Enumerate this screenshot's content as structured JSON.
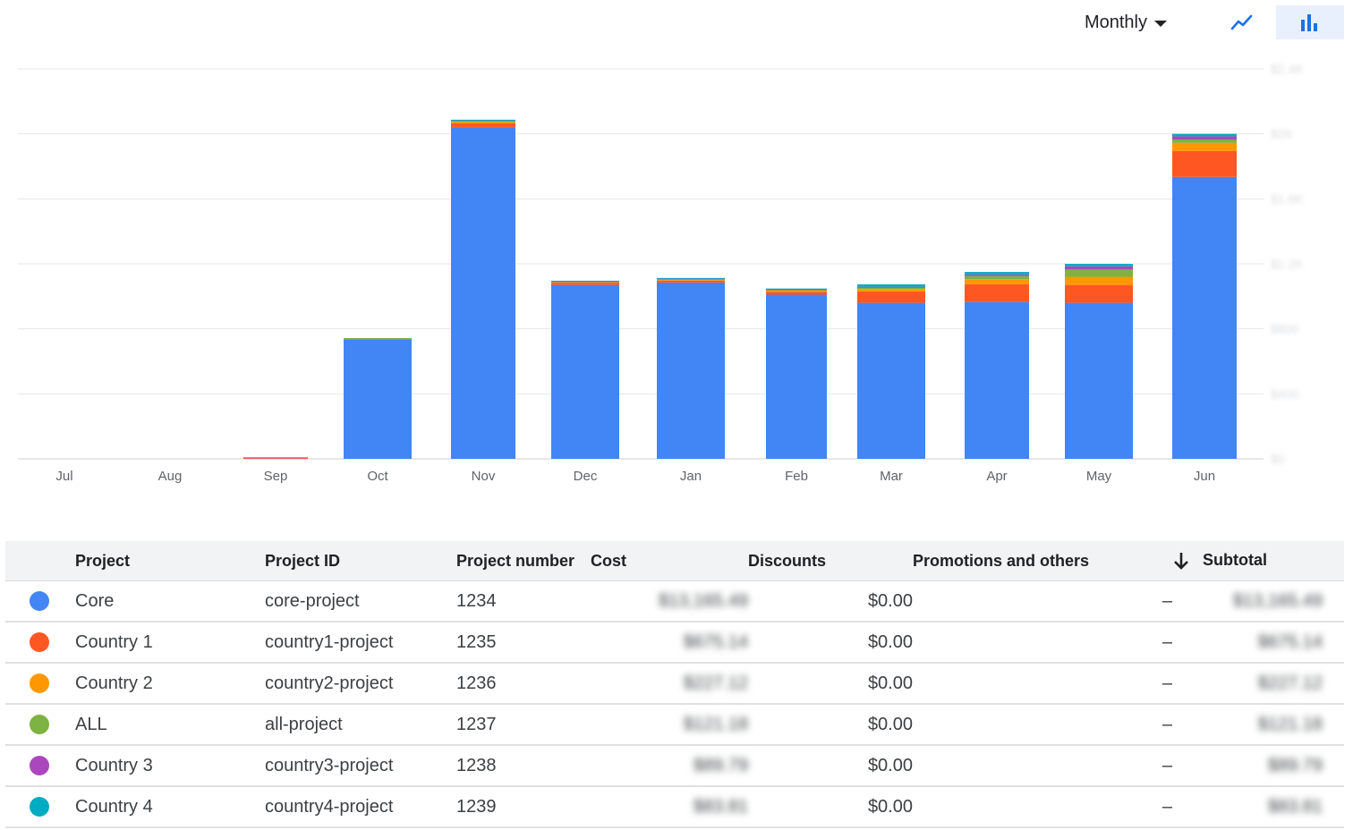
{
  "toolbar": {
    "period_label": "Monthly",
    "line_icon": "line-chart-icon",
    "bar_icon": "bar-chart-icon",
    "accent": "#1a73e8",
    "active_bg": "#e8f0fe"
  },
  "chart_data": {
    "type": "bar",
    "stacked": true,
    "categories": [
      "Jul",
      "Aug",
      "Sep",
      "Oct",
      "Nov",
      "Dec",
      "Jan",
      "Feb",
      "Mar",
      "Apr",
      "May",
      "Jun"
    ],
    "ylim": [
      0,
      2400
    ],
    "y_ticks": [
      "$0",
      "$400",
      "$800",
      "$1.2K",
      "$1.6K",
      "$2K",
      "$2.4K"
    ],
    "grid": true,
    "legend": "none",
    "series": [
      {
        "name": "Core",
        "color": "#4285f4",
        "values": [
          0,
          0,
          0,
          735,
          2040,
          1070,
          1085,
          1010,
          960,
          965,
          960,
          1735
        ]
      },
      {
        "name": "Country 1",
        "color": "#ff5722",
        "values": [
          0,
          0,
          5,
          3,
          25,
          12,
          12,
          18,
          70,
          110,
          110,
          160
        ]
      },
      {
        "name": "Country 2",
        "color": "#ff9800",
        "values": [
          0,
          0,
          0,
          3,
          10,
          6,
          6,
          10,
          15,
          30,
          50,
          50
        ]
      },
      {
        "name": "ALL",
        "color": "#7cb342",
        "values": [
          0,
          0,
          0,
          2,
          4,
          3,
          3,
          4,
          10,
          20,
          45,
          20
        ]
      },
      {
        "name": "Country 3",
        "color": "#ab47bc",
        "values": [
          0,
          0,
          4,
          0,
          6,
          3,
          5,
          3,
          4,
          10,
          20,
          20
        ]
      },
      {
        "name": "Country 4",
        "color": "#00acc1",
        "values": [
          0,
          0,
          0,
          0,
          2,
          2,
          2,
          3,
          15,
          15,
          15,
          15
        ]
      }
    ]
  },
  "table": {
    "headers": {
      "project": "Project",
      "project_id": "Project ID",
      "project_number": "Project number",
      "cost": "Cost",
      "discounts": "Discounts",
      "promotions": "Promotions and others",
      "subtotal": "Subtotal"
    },
    "sort_icon": "arrow-down-icon",
    "rows": [
      {
        "name": "Core",
        "id": "core-project",
        "number": "1234",
        "cost": "$13,165.49",
        "discounts": "$0.00",
        "promotions": "–",
        "subtotal": "$13,165.49",
        "color": "#4285f4"
      },
      {
        "name": "Country 1",
        "id": "country1-project",
        "number": "1235",
        "cost": "$675.14",
        "discounts": "$0.00",
        "promotions": "–",
        "subtotal": "$675.14",
        "color": "#ff5722"
      },
      {
        "name": "Country 2",
        "id": "country2-project",
        "number": "1236",
        "cost": "$227.12",
        "discounts": "$0.00",
        "promotions": "–",
        "subtotal": "$227.12",
        "color": "#ff9800"
      },
      {
        "name": "ALL",
        "id": "all-project",
        "number": "1237",
        "cost": "$121.18",
        "discounts": "$0.00",
        "promotions": "–",
        "subtotal": "$121.18",
        "color": "#7cb342"
      },
      {
        "name": "Country 3",
        "id": "country3-project",
        "number": "1238",
        "cost": "$89.79",
        "discounts": "$0.00",
        "promotions": "–",
        "subtotal": "$89.79",
        "color": "#ab47bc"
      },
      {
        "name": "Country 4",
        "id": "country4-project",
        "number": "1239",
        "cost": "$83.81",
        "discounts": "$0.00",
        "promotions": "–",
        "subtotal": "$83.81",
        "color": "#00acc1"
      }
    ]
  }
}
